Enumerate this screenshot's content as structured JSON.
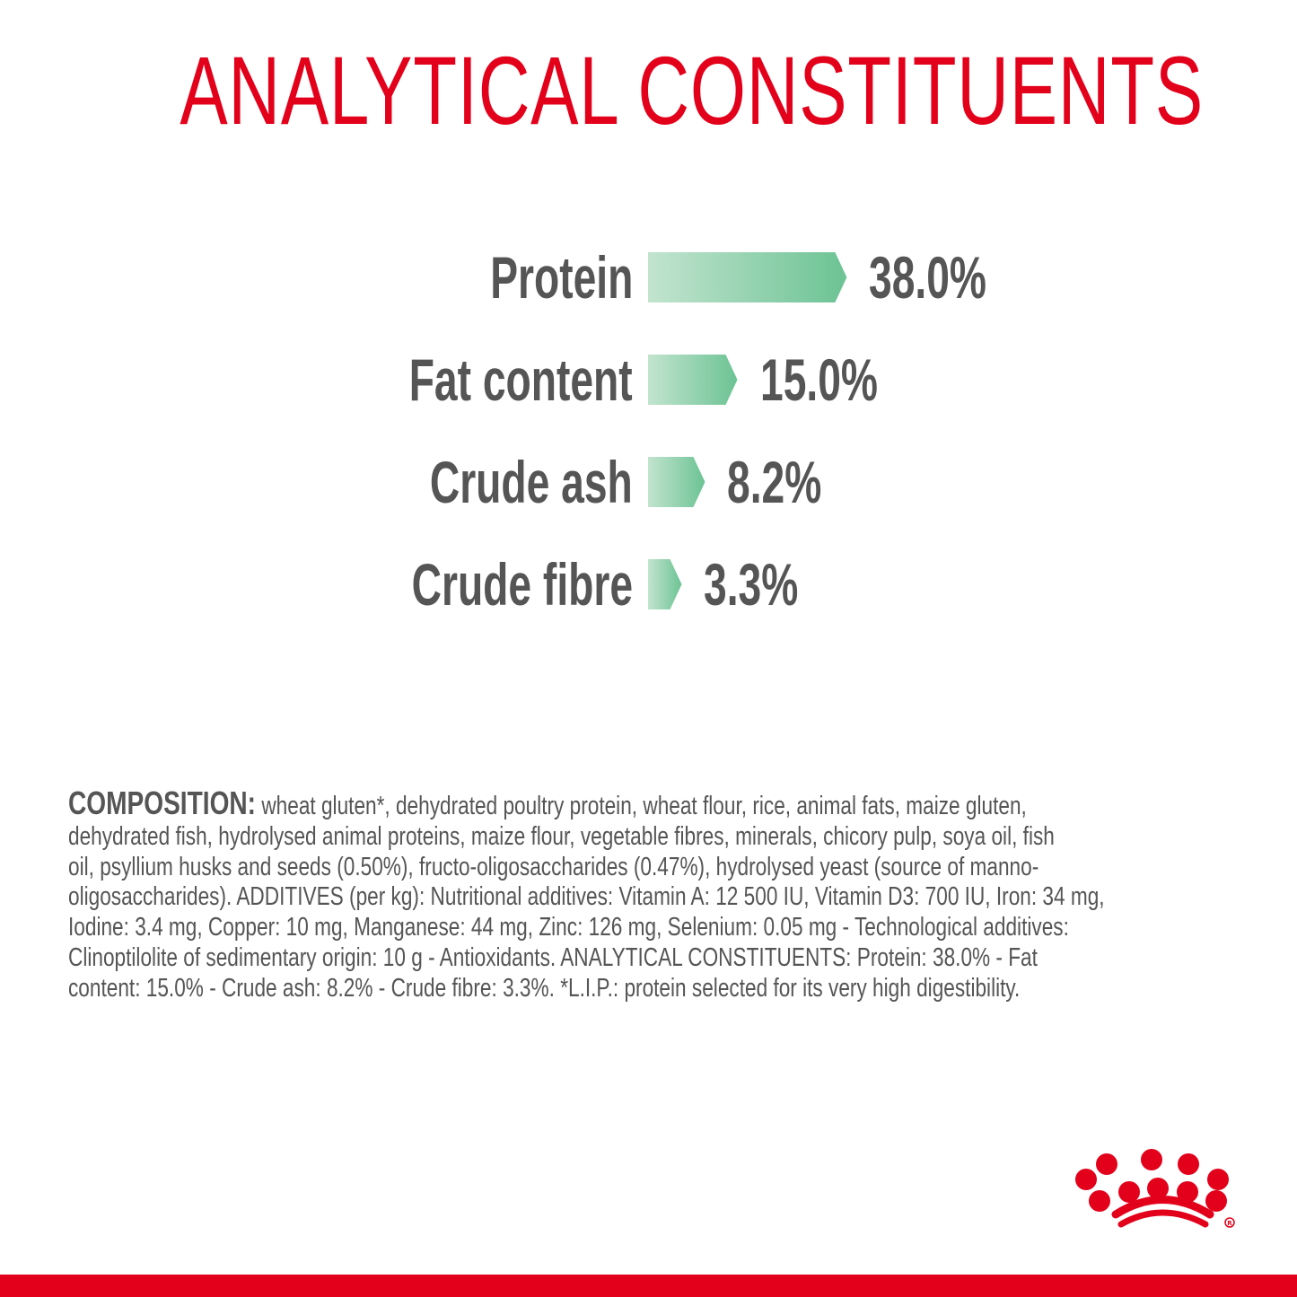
{
  "title": "ANALYTICAL CONSTITUENTS",
  "chart_data": {
    "type": "bar",
    "orientation": "horizontal",
    "categories": [
      "Protein",
      "Fat content",
      "Crude ash",
      "Crude fibre"
    ],
    "values": [
      38.0,
      15.0,
      8.2,
      3.3
    ],
    "value_labels": [
      "38.0%",
      "15.0%",
      "8.2%",
      "3.3%"
    ],
    "unit": "%",
    "grid": false,
    "bar_gradient": [
      "#c2e4cf",
      "#6cc394"
    ],
    "text_color": "#555555"
  },
  "composition": {
    "heading": "COMPOSITION:",
    "lines": [
      " wheat gluten*, dehydrated poultry protein, wheat flour, rice, animal fats, maize gluten,",
      "dehydrated fish, hydrolysed animal proteins, maize flour, vegetable fibres, minerals, chicory pulp, soya oil, fish",
      "oil, psyllium husks and seeds (0.50%), fructo-oligosaccharides (0.47%), hydrolysed yeast (source of manno-",
      "oligosaccharides). ADDITIVES (per kg): Nutritional additives: Vitamin A: 12 500 IU, Vitamin D3: 700 IU, Iron: 34 mg,",
      "Iodine: 3.4 mg, Copper: 10 mg, Manganese: 44 mg, Zinc: 126 mg, Selenium: 0.05 mg - Technological additives:",
      "Clinoptilolite of sedimentary origin: 10 g - Antioxidants. ANALYTICAL CONSTITUENTS: Protein: 38.0% - Fat",
      "content: 15.0% - Crude ash: 8.2% - Crude fibre: 3.3%. *L.I.P.: protein selected for its very high digestibility."
    ]
  },
  "brand": {
    "logo": "Royal Canin crown logo",
    "color": "#e2001a",
    "registered": "®"
  }
}
